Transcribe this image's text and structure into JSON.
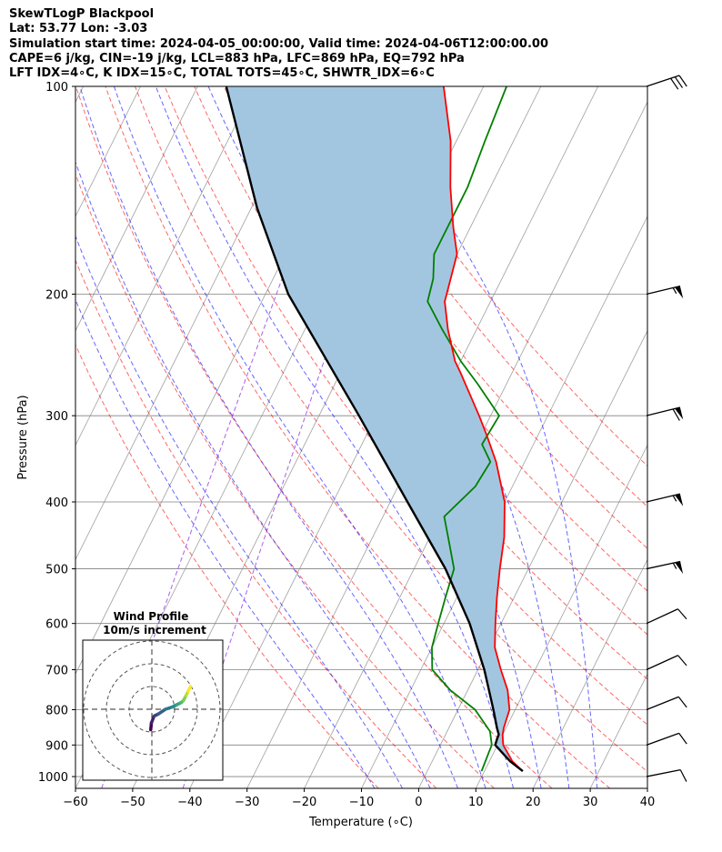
{
  "header": {
    "line1": "SkewTLogP Blackpool",
    "line2": "Lat: 53.77   Lon: -3.03",
    "line3": "Simulation start time: 2024-04-05_00:00:00, Valid time: 2024-04-06T12:00:00.00",
    "line4": "CAPE=6 j/kg, CIN=-19 j/kg, LCL=883 hPa, LFC=869 hPa, EQ=792 hPa",
    "line5": "LFT IDX=4∘C, K IDX=15∘C, TOTAL TOTS=45∘C, SHWTR_IDX=6∘C"
  },
  "colors": {
    "temperature": "#ff0000",
    "dewpoint": "#008000",
    "parcel": "#000000",
    "cape_fill": "#a3c6e0",
    "dry_adiabat": "#ff0000",
    "moist_adiabat": "#0000ff",
    "mixing_ratio": "#8a2be2",
    "isotherm": "#808080"
  },
  "chart_data": [
    {
      "type": "line",
      "subtype": "skew-t log-p",
      "xlabel": "Temperature (∘C)",
      "ylabel": "Pressure (hPa)",
      "xlim": [
        -60,
        40
      ],
      "ylim": [
        1040,
        100
      ],
      "x_ticks": [
        -60,
        -50,
        -40,
        -30,
        -20,
        -10,
        0,
        10,
        20,
        30,
        40
      ],
      "x_tick_labels": [
        "−60",
        "−50",
        "−40",
        "−30",
        "−20",
        "−10",
        "0",
        "10",
        "20",
        "30",
        "40"
      ],
      "y_ticks": [
        100,
        200,
        300,
        400,
        500,
        600,
        700,
        800,
        900,
        1000
      ],
      "y_tick_labels": [
        "100",
        "200",
        "300",
        "400",
        "500",
        "600",
        "700",
        "800",
        "900",
        "1000"
      ],
      "series": [
        {
          "name": "Temperature",
          "p": [
            982,
            950,
            900,
            870,
            850,
            800,
            750,
            700,
            650,
            600,
            550,
            500,
            450,
            400,
            350,
            320,
            300,
            260,
            250,
            225,
            205,
            175,
            160,
            140,
            120,
            100
          ],
          "t": [
            16.7,
            14,
            11,
            10,
            9.6,
            9,
            7,
            4,
            1,
            -1,
            -3,
            -5,
            -7,
            -10,
            -15,
            -19,
            -22,
            -29,
            -31,
            -35,
            -38,
            -40,
            -43,
            -47,
            -51,
            -57
          ]
        },
        {
          "name": "Dewpoint",
          "p": [
            982,
            950,
            900,
            860,
            800,
            750,
            700,
            650,
            600,
            550,
            500,
            460,
            420,
            380,
            350,
            330,
            300,
            270,
            250,
            225,
            205,
            190,
            175,
            160,
            140,
            120,
            100
          ],
          "t": [
            9.5,
            9.3,
            9,
            7.5,
            3,
            -3,
            -8,
            -10,
            -11,
            -12,
            -13,
            -16,
            -19.3,
            -16.5,
            -16,
            -19,
            -18.5,
            -25,
            -30,
            -36,
            -41,
            -42,
            -44,
            -44,
            -44,
            -45,
            -46
          ]
        },
        {
          "name": "Parcel",
          "p": [
            982,
            950,
            900,
            883,
            869,
            850,
            800,
            700,
            600,
            500,
            400,
            300,
            200,
            150,
            100
          ],
          "t": [
            16.7,
            13.6,
            9.6,
            9.4,
            9.3,
            8.4,
            6.2,
            1.1,
            -5.5,
            -14.5,
            -27,
            -43,
            -66,
            -79,
            -95
          ]
        }
      ],
      "shaded": "CAPE region between temperature and parcel traces",
      "wind_barbs": [
        {
          "p": 1000,
          "u": -10,
          "v": -2
        },
        {
          "p": 900,
          "u": -11,
          "v": -4
        },
        {
          "p": 800,
          "u": -10,
          "v": -4
        },
        {
          "p": 700,
          "u": -11,
          "v": -5
        },
        {
          "p": 600,
          "u": -13,
          "v": -6
        },
        {
          "p": 500,
          "u": -55,
          "v": -12
        },
        {
          "p": 400,
          "u": -58,
          "v": -14
        },
        {
          "p": 300,
          "u": -60,
          "v": -15
        },
        {
          "p": 200,
          "u": -58,
          "v": -14
        },
        {
          "p": 100,
          "u": -30,
          "v": -10
        }
      ],
      "dry_adiabats_theta_c": [
        -10,
        0,
        10,
        20,
        30,
        40,
        50,
        60,
        70,
        80,
        90,
        100,
        110
      ],
      "moist_adiabats_t1000_c": [
        -10,
        -5,
        0,
        5,
        10,
        15,
        20,
        25,
        30
      ],
      "mixing_ratio_g_kg": [
        0.02,
        0.1
      ]
    },
    {
      "type": "hodograph",
      "title": "Wind Profile",
      "subtitle": "10m/s increment",
      "ring_increment_ms": 10,
      "trace_uv_ms": [
        [
          -0.5,
          -9
        ],
        [
          -0.2,
          -6
        ],
        [
          1,
          -3
        ],
        [
          3,
          -2
        ],
        [
          6,
          0
        ],
        [
          9,
          1
        ],
        [
          11,
          2
        ],
        [
          13,
          3
        ],
        [
          14,
          4
        ],
        [
          15,
          6
        ],
        [
          16,
          8
        ],
        [
          17,
          10
        ]
      ]
    }
  ]
}
